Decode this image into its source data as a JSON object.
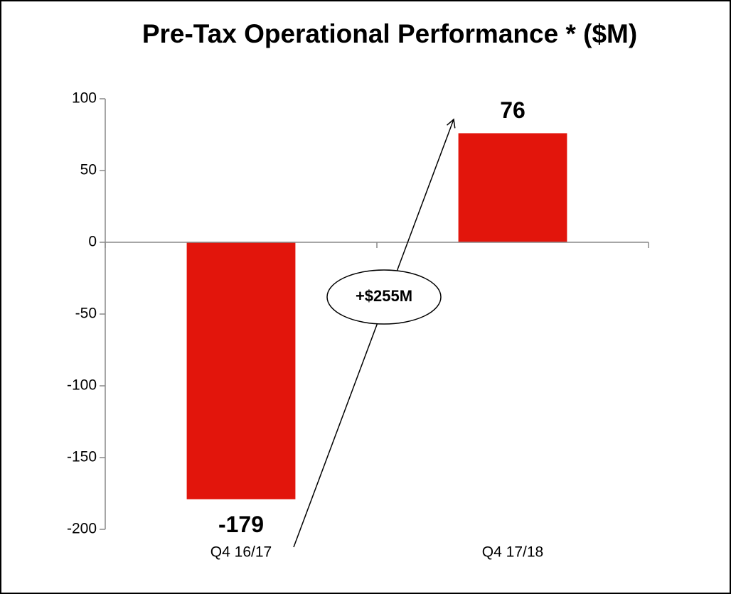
{
  "chart_data": {
    "type": "bar",
    "title": "Pre-Tax Operational Performance * ($M)",
    "categories": [
      "Q4 16/17",
      "Q4 17/18"
    ],
    "values": [
      -179,
      76
    ],
    "color": "#e2150c",
    "ylim": [
      -200,
      100
    ],
    "yticks": [
      -200,
      -150,
      -100,
      -50,
      0,
      50,
      100
    ],
    "grid": false,
    "annotation": "+$255M"
  }
}
